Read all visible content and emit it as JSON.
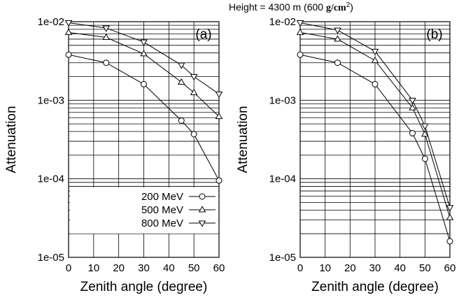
{
  "figure_title_prefix": "Height = 4300 m (600 ",
  "figure_title_unit": "g/cm",
  "figure_title_sup": "2",
  "figure_title_suffix": ")",
  "chart_data": [
    {
      "type": "line",
      "panel_label": "(a)",
      "xlabel": "Zenith angle (degree)",
      "ylabel": "Attenuation",
      "xlim": [
        0,
        60
      ],
      "ylim": [
        1e-05,
        0.01
      ],
      "y_scale": "log",
      "x_ticks": [
        0,
        10,
        20,
        30,
        40,
        50,
        60
      ],
      "x_tick_labels": [
        "0",
        "10",
        "20",
        "30",
        "40",
        "50",
        "60"
      ],
      "y_ticks": [
        1e-05,
        0.0001,
        0.001,
        0.01
      ],
      "y_tick_labels": [
        "1e-05",
        "1e-04",
        "1e-03",
        "1e-02"
      ],
      "grid": true,
      "legend_position": "bottom-left",
      "x": [
        0,
        15,
        30,
        45,
        50,
        60
      ],
      "series": [
        {
          "name": "200 MeV",
          "marker": "circle",
          "values": [
            0.0038,
            0.003,
            0.0016,
            0.00055,
            0.00037,
            9.5e-05
          ]
        },
        {
          "name": "500 MeV",
          "marker": "triangle-up",
          "values": [
            0.0073,
            0.0063,
            0.0039,
            0.0017,
            0.00125,
            0.00062
          ]
        },
        {
          "name": "800 MeV",
          "marker": "triangle-down",
          "values": [
            0.0097,
            0.0083,
            0.0055,
            0.0028,
            0.002,
            0.0012
          ]
        }
      ]
    },
    {
      "type": "line",
      "panel_label": "(b)",
      "xlabel": "Zenith angle (degree)",
      "ylabel": "Attenuation",
      "xlim": [
        0,
        60
      ],
      "ylim": [
        1e-05,
        0.01
      ],
      "y_scale": "log",
      "x_ticks": [
        0,
        10,
        20,
        30,
        40,
        50,
        60
      ],
      "x_tick_labels": [
        "0",
        "10",
        "20",
        "30",
        "40",
        "50",
        "60"
      ],
      "y_ticks": [
        1e-05,
        0.0001,
        0.001,
        0.01
      ],
      "y_tick_labels": [
        "1e-05",
        "1e-04",
        "1e-03",
        "1e-02"
      ],
      "grid": true,
      "x": [
        0,
        15,
        30,
        45,
        50,
        60
      ],
      "series": [
        {
          "name": "200 MeV",
          "marker": "circle",
          "values": [
            0.0038,
            0.003,
            0.0016,
            0.00038,
            0.00018,
            1.6e-05
          ]
        },
        {
          "name": "500 MeV",
          "marker": "triangle-up",
          "values": [
            0.0073,
            0.006,
            0.0032,
            0.0008,
            0.00037,
            3.2e-05
          ]
        },
        {
          "name": "800 MeV",
          "marker": "triangle-down",
          "values": [
            0.0097,
            0.0078,
            0.0042,
            0.001,
            0.00047,
            4.3e-05
          ]
        }
      ]
    }
  ]
}
